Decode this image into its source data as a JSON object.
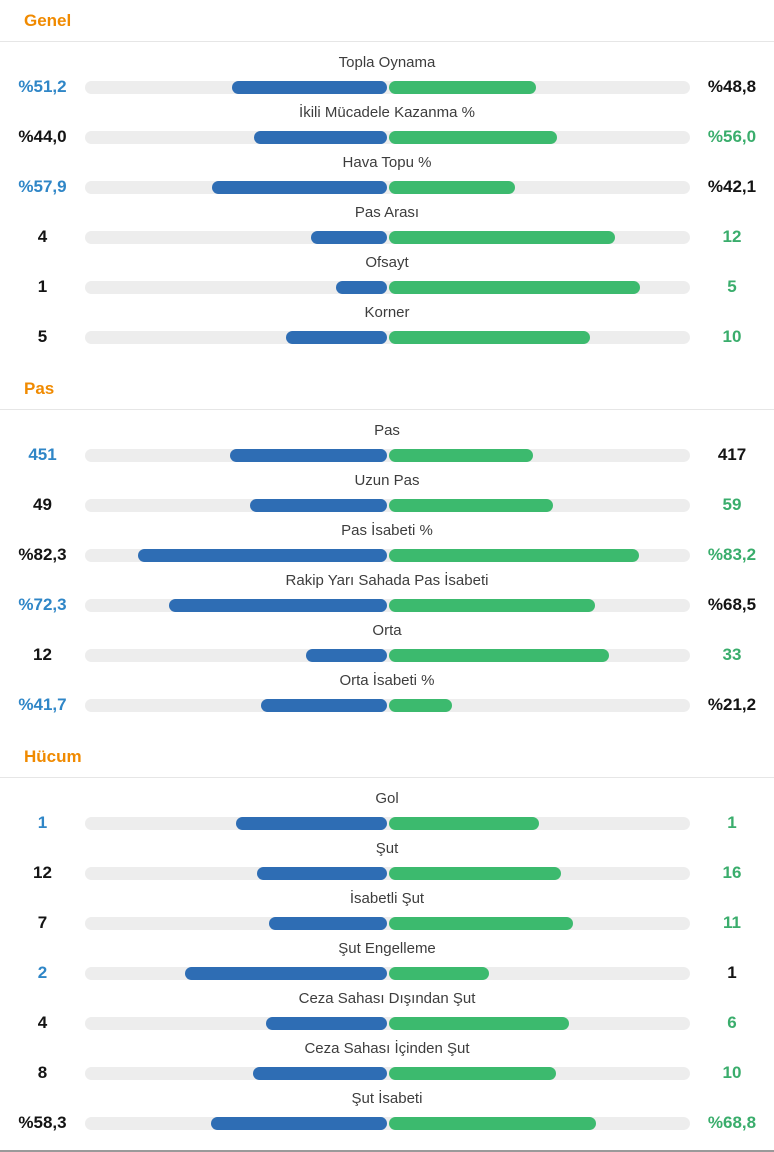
{
  "colors": {
    "home_bar": "#2e6db4",
    "home_text": "#2f86c7",
    "away_bar": "#3cba6e",
    "away_text": "#3aad6c",
    "accent": "#f08a00",
    "track": "#ededed",
    "label_text": "#3d3d3d",
    "value_text": "#141414",
    "divider": "#e6e6e6",
    "bottom_border": "#9a9a9a"
  },
  "chart_data": {
    "type": "bar",
    "orientation": "paired horizontal bars extending left (home, blue) and right (away, green) from center",
    "legend": "none",
    "grid": false,
    "sections": [
      {
        "title": "Genel",
        "rows": [
          {
            "label": "Topla Oynama",
            "home_value": "%51,2",
            "away_value": "%48,8",
            "home_pct": 51.2,
            "away_pct": 48.8,
            "winner": "left"
          },
          {
            "label": "İkili Mücadele Kazanma %",
            "home_value": "%44,0",
            "away_value": "%56,0",
            "home_pct": 44.0,
            "away_pct": 56.0,
            "winner": "right"
          },
          {
            "label": "Hava Topu %",
            "home_value": "%57,9",
            "away_value": "%42,1",
            "home_pct": 57.9,
            "away_pct": 42.1,
            "winner": "left"
          },
          {
            "label": "Pas Arası",
            "home_value": "4",
            "away_value": "12",
            "home_pct": 25.0,
            "away_pct": 75.0,
            "winner": "right"
          },
          {
            "label": "Ofsayt",
            "home_value": "1",
            "away_value": "5",
            "home_pct": 16.7,
            "away_pct": 83.3,
            "winner": "right"
          },
          {
            "label": "Korner",
            "home_value": "5",
            "away_value": "10",
            "home_pct": 33.3,
            "away_pct": 66.7,
            "winner": "right"
          }
        ]
      },
      {
        "title": "Pas",
        "rows": [
          {
            "label": "Pas",
            "home_value": "451",
            "away_value": "417",
            "home_pct": 52.0,
            "away_pct": 48.0,
            "winner": "left"
          },
          {
            "label": "Uzun Pas",
            "home_value": "49",
            "away_value": "59",
            "home_pct": 45.4,
            "away_pct": 54.6,
            "winner": "right"
          },
          {
            "label": "Pas İsabeti %",
            "home_value": "%82,3",
            "away_value": "%83,2",
            "home_pct": 82.3,
            "away_pct": 83.2,
            "winner": "right"
          },
          {
            "label": "Rakip Yarı Sahada Pas İsabeti",
            "home_value": "%72,3",
            "away_value": "%68,5",
            "home_pct": 72.3,
            "away_pct": 68.5,
            "winner": "left"
          },
          {
            "label": "Orta",
            "home_value": "12",
            "away_value": "33",
            "home_pct": 26.7,
            "away_pct": 73.3,
            "winner": "right"
          },
          {
            "label": "Orta İsabeti %",
            "home_value": "%41,7",
            "away_value": "%21,2",
            "home_pct": 41.7,
            "away_pct": 21.2,
            "winner": "left"
          }
        ]
      },
      {
        "title": "Hücum",
        "rows": [
          {
            "label": "Gol",
            "home_value": "1",
            "away_value": "1",
            "home_pct": 50.0,
            "away_pct": 50.0,
            "winner": "both"
          },
          {
            "label": "Şut",
            "home_value": "12",
            "away_value": "16",
            "home_pct": 42.9,
            "away_pct": 57.1,
            "winner": "right"
          },
          {
            "label": "İsabetli Şut",
            "home_value": "7",
            "away_value": "11",
            "home_pct": 38.9,
            "away_pct": 61.1,
            "winner": "right"
          },
          {
            "label": "Şut Engelleme",
            "home_value": "2",
            "away_value": "1",
            "home_pct": 66.7,
            "away_pct": 33.3,
            "winner": "left"
          },
          {
            "label": "Ceza Sahası Dışından Şut",
            "home_value": "4",
            "away_value": "6",
            "home_pct": 40.0,
            "away_pct": 60.0,
            "winner": "right"
          },
          {
            "label": "Ceza Sahası İçinden Şut",
            "home_value": "8",
            "away_value": "10",
            "home_pct": 44.4,
            "away_pct": 55.6,
            "winner": "right"
          },
          {
            "label": "Şut İsabeti",
            "home_value": "%58,3",
            "away_value": "%68,8",
            "home_pct": 58.3,
            "away_pct": 68.8,
            "winner": "right"
          }
        ]
      }
    ]
  }
}
